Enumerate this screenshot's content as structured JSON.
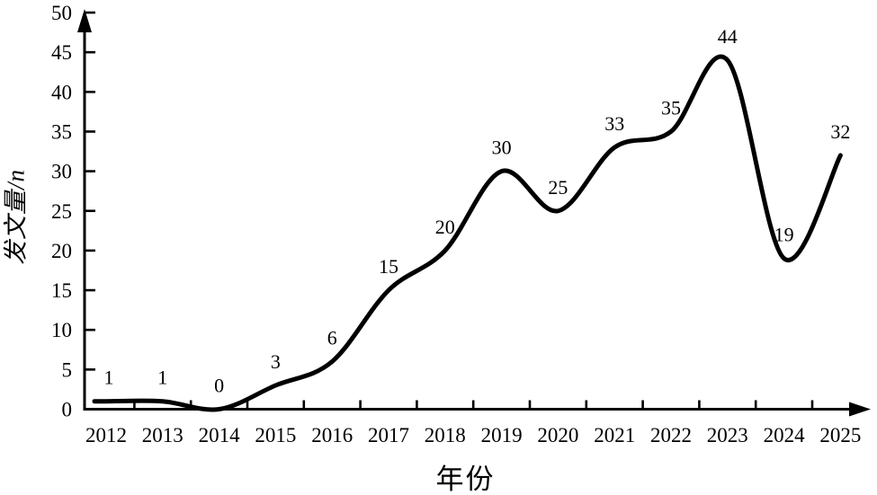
{
  "chart_data": {
    "type": "line",
    "title": "",
    "categories": [
      "2012",
      "2013",
      "2014",
      "2015",
      "2016",
      "2017",
      "2018",
      "2019",
      "2020",
      "2021",
      "2022",
      "2023",
      "2024",
      "2025"
    ],
    "series": [
      {
        "name": "发文量",
        "values": [
          1,
          1,
          0,
          3,
          6,
          15,
          20,
          30,
          25,
          33,
          35,
          44,
          19,
          32
        ]
      }
    ],
    "data_labels": [
      "1",
      "1",
      "0",
      "3",
      "6",
      "15",
      "20",
      "30",
      "25",
      "33",
      "35",
      "44",
      "19",
      "32"
    ],
    "xlabel": "年份",
    "ylabel": "发文量/n",
    "ylim": [
      0,
      50
    ],
    "ytick_step": 5,
    "ytick_labels": [
      "0",
      "5",
      "10",
      "15",
      "20",
      "25",
      "30",
      "35",
      "40",
      "45",
      "50"
    ],
    "grid": false,
    "legend": false,
    "line_color": "#000000",
    "axis_color": "#000000",
    "text_color": "#000000",
    "background_color": "#ffffff"
  }
}
